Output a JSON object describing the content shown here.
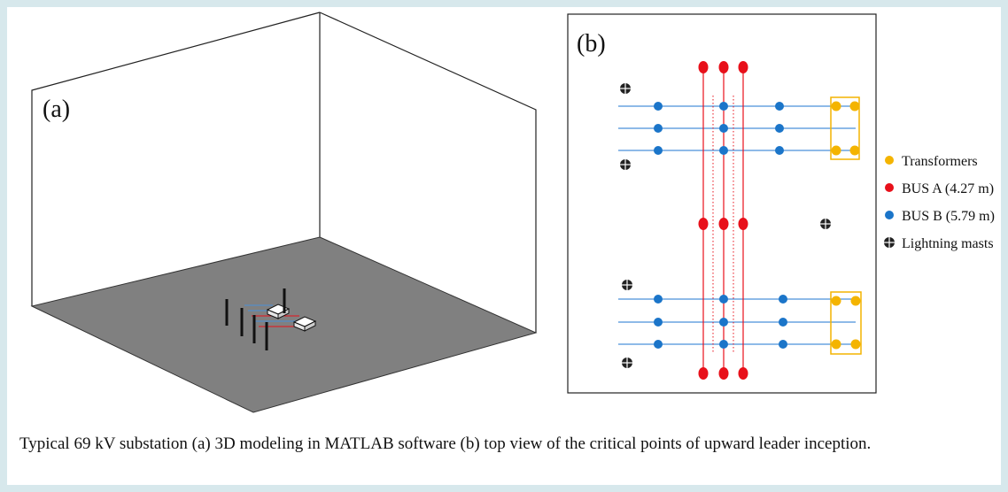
{
  "panel_a": {
    "label": "(a)"
  },
  "panel_b": {
    "label": "(b)"
  },
  "legend": [
    {
      "label": "Transformers",
      "color": "#f4b400",
      "icon": "dot-icon"
    },
    {
      "label": "BUS A (4.27 m)",
      "color": "#e8101a",
      "icon": "dot-icon"
    },
    {
      "label": "BUS B (5.79 m)",
      "color": "#1b75c9",
      "icon": "dot-icon"
    },
    {
      "label": "Lightning masts",
      "color": "#222222",
      "icon": "crosshair-circle-icon"
    }
  ],
  "colors": {
    "transformer": "#f4b400",
    "bus_a": "#e8101a",
    "bus_b": "#1b75c9",
    "bus_line": "#4a90d9",
    "ground": "#808080"
  },
  "caption": "Typical 69 kV substation (a) 3D modeling in MATLAB software (b) top view of the critical points of upward leader inception."
}
